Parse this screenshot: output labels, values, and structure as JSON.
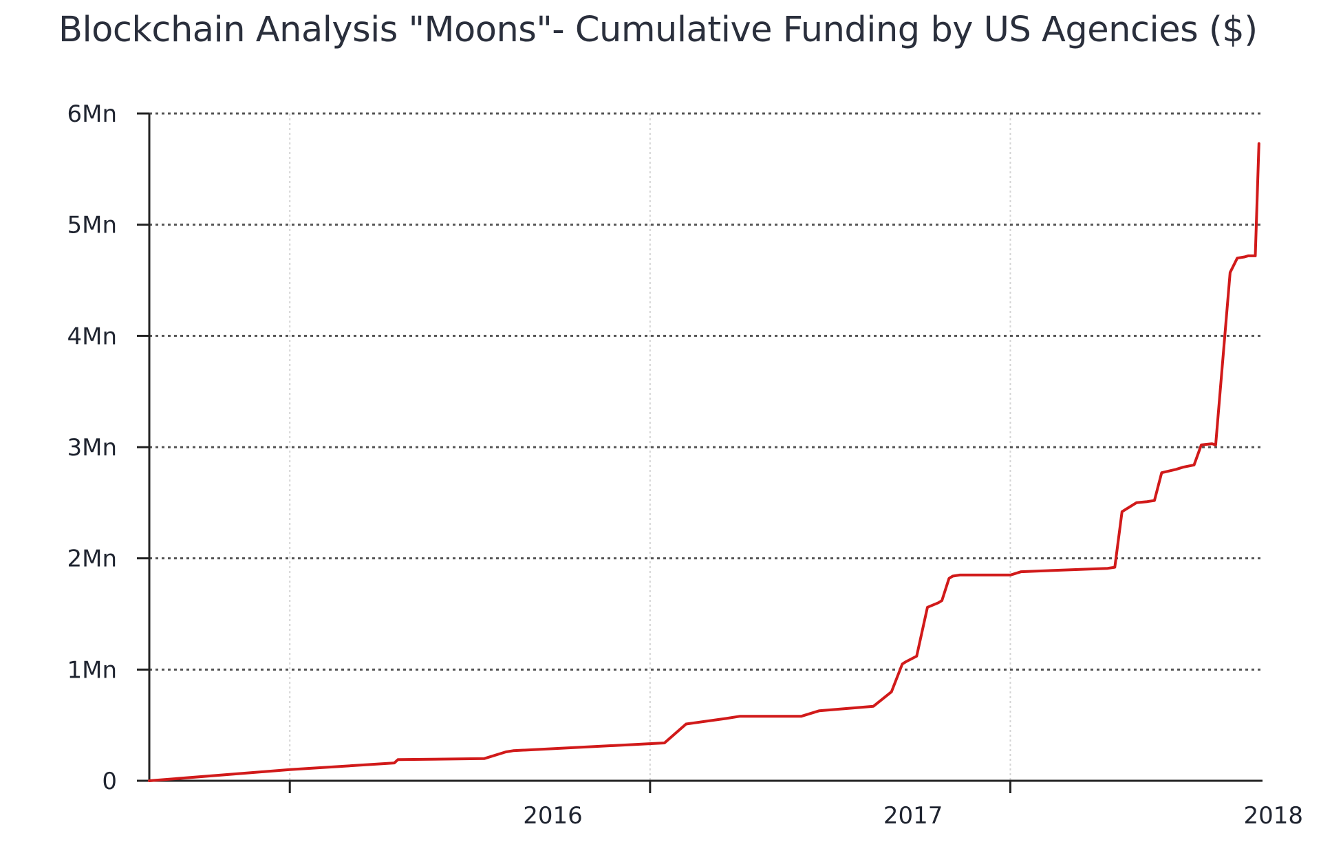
{
  "chart_data": {
    "type": "line",
    "title": "Blockchain Analysis \"Moons\"- Cumulative Funding by US Agencies ($)",
    "xlabel": "",
    "ylabel": "",
    "xlim": [
      2015.38,
      2018.47
    ],
    "ylim": [
      0,
      6000000
    ],
    "y_ticks": [
      {
        "value": 0,
        "label": "0"
      },
      {
        "value": 1000000,
        "label": "1Mn"
      },
      {
        "value": 2000000,
        "label": "2Mn"
      },
      {
        "value": 3000000,
        "label": "3Mn"
      },
      {
        "value": 4000000,
        "label": "4Mn"
      },
      {
        "value": 5000000,
        "label": "5Mn"
      },
      {
        "value": 6000000,
        "label": "6Mn"
      }
    ],
    "x_ticks": [
      {
        "value": 2016,
        "label": "2016"
      },
      {
        "value": 2017,
        "label": "2017"
      },
      {
        "value": 2018,
        "label": "2018"
      }
    ],
    "x_tick_marks": [
      2015.77,
      2016.77,
      2017.77
    ],
    "grid": true,
    "series": [
      {
        "name": "Cumulative Funding",
        "color": "#d11a1a",
        "x": [
          2015.38,
          2015.77,
          2016.06,
          2016.07,
          2016.31,
          2016.37,
          2016.39,
          2016.81,
          2016.87,
          2016.98,
          2017.02,
          2017.19,
          2017.24,
          2017.39,
          2017.44,
          2017.47,
          2017.48,
          2017.51,
          2017.54,
          2017.57,
          2017.58,
          2017.6,
          2017.61,
          2017.63,
          2017.77,
          2017.8,
          2018.04,
          2018.06,
          2018.08,
          2018.12,
          2018.15,
          2018.17,
          2018.19,
          2018.23,
          2018.25,
          2018.28,
          2018.3,
          2018.33,
          2018.34,
          2018.38,
          2018.4,
          2018.42,
          2018.43,
          2018.45,
          2018.46
        ],
        "values": [
          0,
          100000,
          160000,
          190000,
          200000,
          260000,
          270000,
          340000,
          510000,
          560000,
          580000,
          580000,
          630000,
          670000,
          800000,
          1050000,
          1070000,
          1120000,
          1560000,
          1600000,
          1620000,
          1820000,
          1840000,
          1850000,
          1850000,
          1880000,
          1910000,
          1920000,
          2420000,
          2500000,
          2510000,
          2520000,
          2770000,
          2800000,
          2820000,
          2840000,
          3020000,
          3030000,
          3020000,
          4570000,
          4700000,
          4710000,
          4720000,
          4720000,
          5730000
        ]
      }
    ]
  },
  "colors": {
    "line": "#d11a1a",
    "grid_major": "#555555",
    "grid_minor": "#d4d4d4",
    "axis": "#222222",
    "text": "#1f2430"
  }
}
